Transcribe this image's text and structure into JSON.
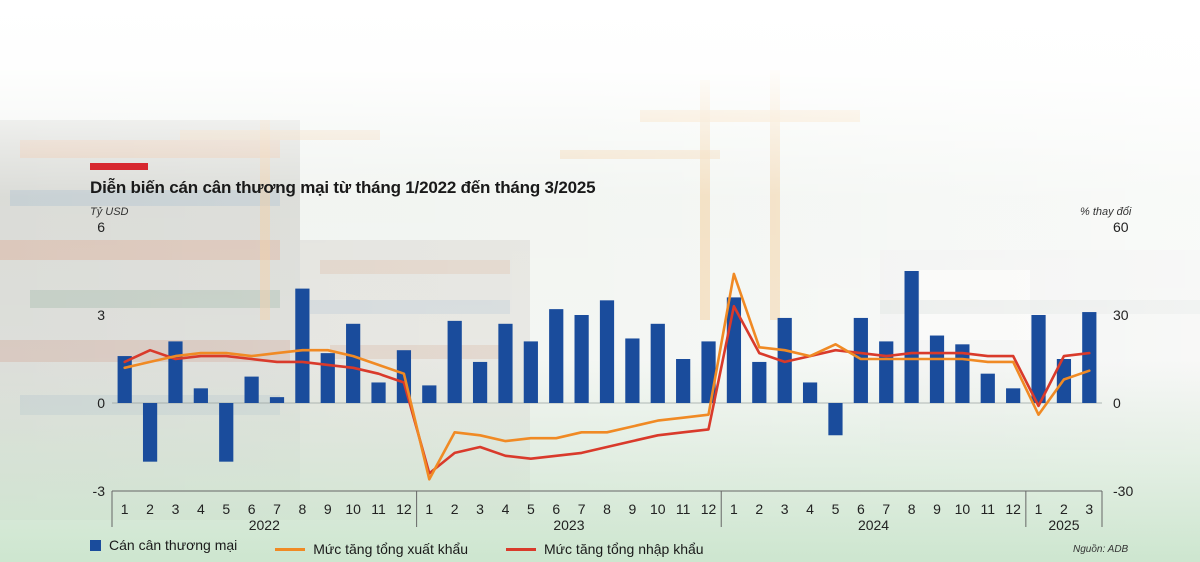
{
  "title": "Diễn biến cán cân thương mại từ tháng 1/2022 đến tháng 3/2025",
  "source": "Nguồn: ADB",
  "colors": {
    "accent": "#d7282f",
    "bar": "#1a4c9c",
    "export_line": "#f08a24",
    "import_line": "#d93a2b"
  },
  "chart_data": {
    "type": "bar",
    "left_axis": {
      "label": "Tỷ USD",
      "ticks": [
        6,
        3,
        0,
        -3
      ],
      "ylim": [
        -3,
        6
      ]
    },
    "right_axis": {
      "label": "% thay đổi",
      "ticks": [
        60,
        30,
        0,
        -30
      ],
      "ylim": [
        -30,
        60
      ]
    },
    "x": [
      "1",
      "2",
      "3",
      "4",
      "5",
      "6",
      "7",
      "8",
      "9",
      "10",
      "11",
      "12",
      "1",
      "2",
      "3",
      "4",
      "5",
      "6",
      "7",
      "8",
      "9",
      "10",
      "11",
      "12",
      "1",
      "2",
      "3",
      "4",
      "5",
      "6",
      "7",
      "8",
      "9",
      "10",
      "11",
      "12",
      "1",
      "2",
      "3"
    ],
    "year_groups": [
      {
        "label": "2022",
        "start": 0,
        "end": 11
      },
      {
        "label": "2023",
        "start": 12,
        "end": 23
      },
      {
        "label": "2024",
        "start": 24,
        "end": 35
      },
      {
        "label": "2025",
        "start": 36,
        "end": 38
      }
    ],
    "series": [
      {
        "name": "Cán cân thương mại",
        "kind": "bar",
        "axis": "left",
        "values": [
          1.6,
          -2.0,
          2.1,
          0.5,
          -2.0,
          0.9,
          0.2,
          3.9,
          1.7,
          2.7,
          0.7,
          1.8,
          0.6,
          2.8,
          1.4,
          2.7,
          2.1,
          3.2,
          3.0,
          3.5,
          2.2,
          2.7,
          1.5,
          2.1,
          3.6,
          1.4,
          2.9,
          0.7,
          -1.1,
          2.9,
          2.1,
          4.5,
          2.3,
          2.0,
          1.0,
          0.5,
          3.0,
          1.5,
          3.1
        ]
      },
      {
        "name": "Mức tăng tổng xuất khẩu",
        "kind": "line",
        "axis": "right",
        "values": [
          12,
          14,
          16,
          17,
          17,
          16,
          17,
          18,
          18,
          16,
          13,
          10,
          -26,
          -10,
          -11,
          -13,
          -12,
          -12,
          -10,
          -10,
          -8,
          -6,
          -5,
          -4,
          44,
          19,
          18,
          16,
          20,
          15,
          15,
          15,
          15,
          15,
          14,
          14,
          -4,
          8,
          11
        ]
      },
      {
        "name": "Mức tăng tổng nhập khẩu",
        "kind": "line",
        "axis": "right",
        "values": [
          14,
          18,
          15,
          16,
          16,
          15,
          14,
          14,
          13,
          12,
          10,
          7,
          -24,
          -17,
          -15,
          -18,
          -19,
          -18,
          -17,
          -15,
          -13,
          -11,
          -10,
          -9,
          33,
          17,
          14,
          16,
          18,
          17,
          16,
          17,
          17,
          17,
          16,
          16,
          -1,
          16,
          17
        ]
      }
    ]
  }
}
